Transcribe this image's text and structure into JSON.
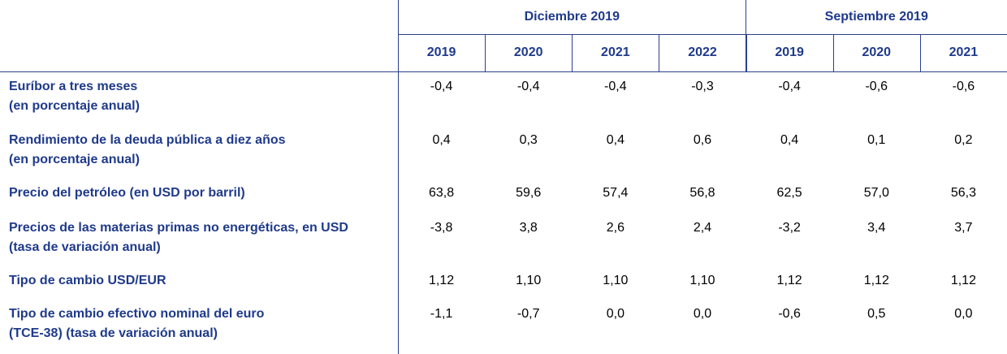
{
  "table": {
    "groups": [
      "Diciembre 2019",
      "Septiembre 2019"
    ],
    "years": [
      "2019",
      "2020",
      "2021",
      "2022",
      "2019",
      "2020",
      "2021"
    ],
    "rows": [
      {
        "label": [
          "Euríbor a tres meses",
          "(en porcentaje anual)"
        ],
        "values": [
          "-0,4",
          "-0,4",
          "-0,4",
          "-0,3",
          "-0,4",
          "-0,6",
          "-0,6"
        ]
      },
      {
        "label": [
          "Rendimiento de la deuda pública a diez años",
          "(en porcentaje anual)"
        ],
        "values": [
          "0,4",
          "0,3",
          "0,4",
          "0,6",
          "0,4",
          "0,1",
          "0,2"
        ]
      },
      {
        "label": [
          "Precio del petróleo (en USD por barril)"
        ],
        "values": [
          "63,8",
          "59,6",
          "57,4",
          "56,8",
          "62,5",
          "57,0",
          "56,3"
        ]
      },
      {
        "label": [
          "Precios de las materias primas no energéticas, en USD",
          "(tasa de variación anual)"
        ],
        "values": [
          "-3,8",
          "3,8",
          "2,6",
          "2,4",
          "-3,2",
          "3,4",
          "3,7"
        ]
      },
      {
        "label": [
          "Tipo de cambio USD/EUR"
        ],
        "values": [
          "1,12",
          "1,10",
          "1,10",
          "1,10",
          "1,12",
          "1,12",
          "1,12"
        ]
      },
      {
        "label": [
          "Tipo de cambio efectivo nominal del euro",
          "(TCE-38) (tasa de variación anual)"
        ],
        "values": [
          "-1,1",
          "-0,7",
          "0,0",
          "0,0",
          "-0,6",
          "0,5",
          "0,0"
        ]
      }
    ]
  }
}
